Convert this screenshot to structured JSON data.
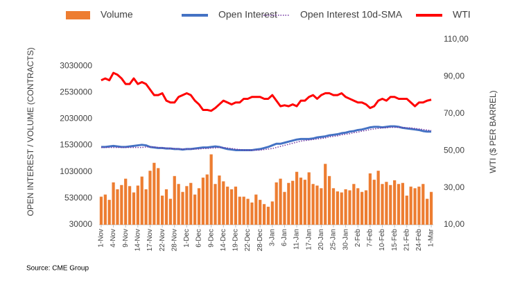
{
  "chart_data": {
    "type": "combo",
    "y_label": "OPEN INTEREST / VOLUME (CONTRACTS)",
    "y2_label": "WTI ($ PER BARREL)",
    "source": "Source: CME Group",
    "categories": [
      "1-Nov",
      null,
      null,
      "4-Nov",
      null,
      null,
      "9-Nov",
      null,
      null,
      "14-Nov",
      null,
      null,
      "17-Nov",
      null,
      null,
      "22-Nov",
      null,
      null,
      "28-Nov",
      null,
      null,
      "1-Dec",
      null,
      null,
      "6-Dec",
      null,
      null,
      "9-Dec",
      null,
      null,
      "14-Dec",
      null,
      null,
      "19-Dec",
      null,
      null,
      "22-Dec",
      null,
      null,
      "28-Dec",
      null,
      null,
      "3-Jan",
      null,
      null,
      "6-Jan",
      null,
      null,
      "11-Jan",
      null,
      null,
      "17-Jan",
      null,
      null,
      "20-Jan",
      null,
      null,
      "25-Jan",
      null,
      null,
      "30-Jan",
      null,
      null,
      "2-Feb",
      null,
      null,
      "7-Feb",
      null,
      null,
      "10-Feb",
      null,
      null,
      "15-Feb",
      null,
      null,
      "21-Feb",
      null,
      null,
      "24-Feb",
      null,
      null,
      "1-Mar"
    ],
    "ylim": [
      30000,
      3530000
    ],
    "yticks": [
      30000,
      530000,
      1030000,
      1530000,
      2030000,
      2530000,
      3030000
    ],
    "y2lim": [
      10,
      110
    ],
    "y2ticks": [
      {
        "value": 10,
        "label": "10,00"
      },
      {
        "value": 30,
        "label": "30,00"
      },
      {
        "value": 50,
        "label": "50,00"
      },
      {
        "value": 70,
        "label": "70,00"
      },
      {
        "value": 90,
        "label": "90,00"
      },
      {
        "value": 110,
        "label": "110,00"
      }
    ],
    "grid": false,
    "legend": "top",
    "series": [
      {
        "name": "Volume",
        "type": "bar",
        "color": "#ed7d31",
        "values": [
          560000,
          600000,
          500000,
          830000,
          700000,
          780000,
          900000,
          760000,
          640000,
          770000,
          940000,
          700000,
          1050000,
          1200000,
          1100000,
          580000,
          700000,
          520000,
          950000,
          800000,
          650000,
          760000,
          820000,
          600000,
          720000,
          920000,
          980000,
          1360000,
          800000,
          960000,
          850000,
          750000,
          700000,
          750000,
          560000,
          560000,
          520000,
          450000,
          600000,
          500000,
          420000,
          370000,
          470000,
          830000,
          900000,
          650000,
          820000,
          860000,
          1030000,
          920000,
          880000,
          1020000,
          800000,
          770000,
          720000,
          1180000,
          950000,
          720000,
          660000,
          640000,
          700000,
          680000,
          800000,
          720000,
          650000,
          680000,
          1000000,
          880000,
          1050000,
          800000,
          840000,
          780000,
          870000,
          800000,
          820000,
          580000,
          750000,
          720000,
          750000,
          800000,
          520000,
          650000
        ]
      },
      {
        "name": "Open Interest",
        "type": "line",
        "color": "#4472c4",
        "values": [
          1500000,
          1500000,
          1510000,
          1520000,
          1510000,
          1500000,
          1500000,
          1510000,
          1520000,
          1530000,
          1540000,
          1530000,
          1500000,
          1490000,
          1480000,
          1480000,
          1470000,
          1470000,
          1460000,
          1460000,
          1450000,
          1460000,
          1460000,
          1470000,
          1480000,
          1490000,
          1490000,
          1500000,
          1510000,
          1500000,
          1480000,
          1460000,
          1450000,
          1440000,
          1440000,
          1440000,
          1440000,
          1440000,
          1450000,
          1460000,
          1480000,
          1500000,
          1530000,
          1560000,
          1560000,
          1580000,
          1600000,
          1620000,
          1640000,
          1650000,
          1650000,
          1650000,
          1660000,
          1680000,
          1690000,
          1700000,
          1720000,
          1730000,
          1740000,
          1760000,
          1770000,
          1790000,
          1800000,
          1820000,
          1830000,
          1850000,
          1870000,
          1880000,
          1880000,
          1870000,
          1880000,
          1890000,
          1890000,
          1880000,
          1860000,
          1850000,
          1840000,
          1830000,
          1820000,
          1800000,
          1790000,
          1790000
        ]
      },
      {
        "name": "Open Interest 10d-SMA",
        "type": "line",
        "dash": "dotted",
        "color": "#7030a0",
        "values": [
          1490000,
          1490000,
          1490000,
          1490000,
          1490000,
          1490000,
          1490000,
          1490000,
          1490000,
          1490000,
          1490000,
          1500000,
          1500000,
          1500000,
          1490000,
          1480000,
          1480000,
          1470000,
          1470000,
          1460000,
          1460000,
          1460000,
          1460000,
          1460000,
          1460000,
          1470000,
          1470000,
          1480000,
          1480000,
          1490000,
          1490000,
          1480000,
          1470000,
          1460000,
          1450000,
          1440000,
          1440000,
          1440000,
          1440000,
          1440000,
          1450000,
          1460000,
          1470000,
          1490000,
          1510000,
          1530000,
          1550000,
          1570000,
          1590000,
          1610000,
          1620000,
          1630000,
          1640000,
          1650000,
          1660000,
          1670000,
          1690000,
          1700000,
          1710000,
          1730000,
          1740000,
          1750000,
          1770000,
          1780000,
          1800000,
          1810000,
          1830000,
          1840000,
          1850000,
          1860000,
          1860000,
          1870000,
          1870000,
          1870000,
          1870000,
          1860000,
          1860000,
          1850000,
          1840000,
          1830000,
          1820000,
          1810000
        ]
      },
      {
        "name": "WTI",
        "type": "line",
        "axis": "y2",
        "color": "#ff0000",
        "values": [
          88,
          89,
          88,
          92,
          91,
          89,
          86,
          86,
          89,
          86,
          87,
          86,
          83,
          80,
          80,
          81,
          77,
          76,
          76,
          79,
          80,
          81,
          80,
          77,
          75,
          72,
          72,
          71.5,
          73,
          75,
          77,
          76,
          75,
          76,
          76,
          78,
          78,
          79,
          79,
          79,
          78,
          78,
          80,
          77,
          74,
          74.5,
          74,
          75,
          74,
          77,
          77,
          79,
          80,
          78,
          80,
          81,
          81,
          80,
          80,
          81,
          79,
          78,
          77,
          76,
          76,
          75,
          73,
          74,
          77,
          78,
          77,
          79,
          79,
          78,
          78,
          78,
          76,
          74,
          76,
          76,
          77,
          77.5
        ]
      }
    ]
  }
}
